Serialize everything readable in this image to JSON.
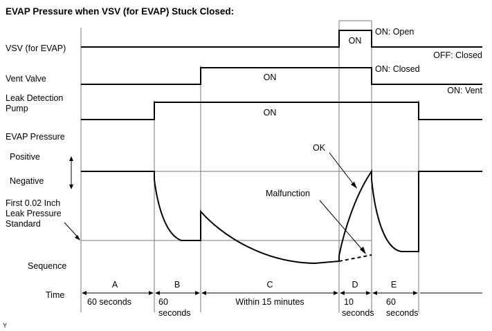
{
  "title": "EVAP Pressure when VSV (for EVAP) Stuck Closed:",
  "signals": {
    "vsv": {
      "label": "VSV (for EVAP)",
      "on_label": "ON",
      "state_high": "ON: Open",
      "state_low": "OFF: Closed"
    },
    "vent_valve": {
      "label": "Vent Valve",
      "on_label": "ON",
      "state_high": "ON: Closed",
      "state_low": "ON: Vent"
    },
    "pump": {
      "label_line1": "Leak Detection",
      "label_line2": "Pump",
      "on_label": "ON"
    }
  },
  "pressure": {
    "label": "EVAP Pressure",
    "positive": "Positive",
    "negative": "Negative",
    "standard_line1": "First 0.02 Inch",
    "standard_line2": "Leak Pressure",
    "standard_line3": "Standard",
    "ok_label": "OK",
    "malfunction_label": "Malfunction"
  },
  "sequence_label": "Sequence",
  "time_label": "Time",
  "phases": [
    {
      "letter": "A",
      "line1": "60 seconds",
      "line2": ""
    },
    {
      "letter": "B",
      "line1": "60",
      "line2": "seconds"
    },
    {
      "letter": "C",
      "line1": "Within 15 minutes",
      "line2": ""
    },
    {
      "letter": "D",
      "line1": "10",
      "line2": "seconds"
    },
    {
      "letter": "E",
      "line1": "60",
      "line2": "seconds"
    }
  ],
  "footer_mark": "Y"
}
